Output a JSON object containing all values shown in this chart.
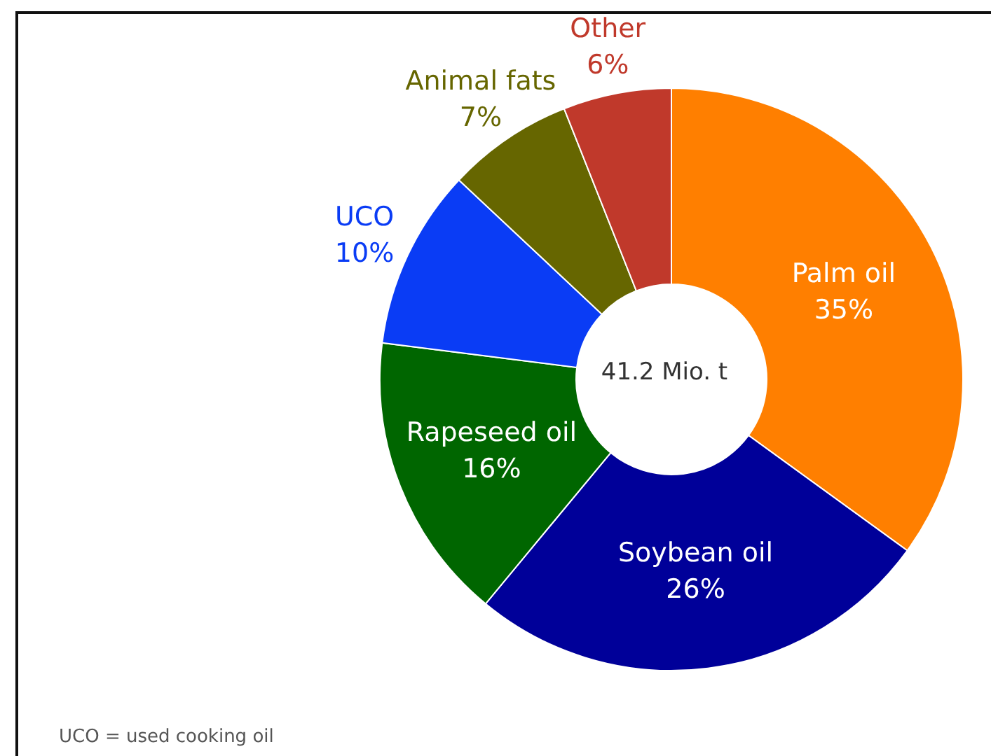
{
  "chart_data": {
    "type": "donut",
    "categories": [
      "Palm oil",
      "Soybean oil",
      "Rapeseed oil",
      "UCO",
      "Animal fats",
      "Other"
    ],
    "values": [
      35,
      26,
      16,
      10,
      7,
      6
    ],
    "value_labels": [
      "35%",
      "26%",
      "16%",
      "10%",
      "7%",
      "6%"
    ],
    "colors": [
      "#ff7f00",
      "#000099",
      "#006600",
      "#0a3cf5",
      "#666600",
      "#c0392b"
    ],
    "annotations": [
      "41.2 Mio. t",
      "UCO = used cooking oil"
    ]
  }
}
